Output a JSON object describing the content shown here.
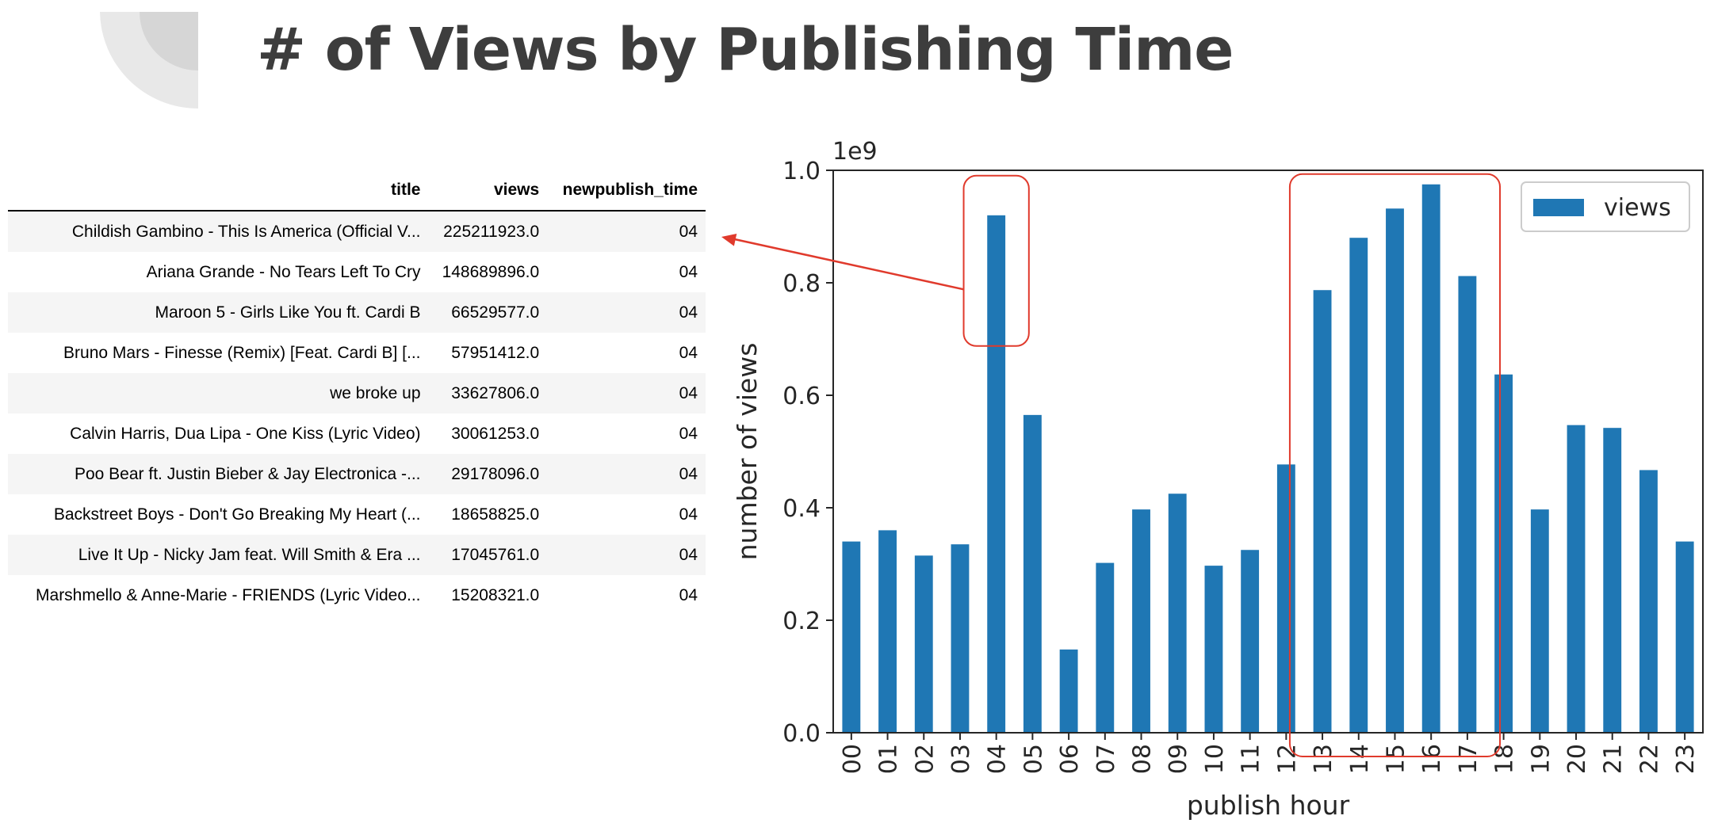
{
  "slide": {
    "title": "# of Views by Publishing Time"
  },
  "table": {
    "columns": [
      "title",
      "views",
      "newpublish_time"
    ],
    "rows": [
      [
        "Childish Gambino - This Is America (Official V...",
        "225211923.0",
        "04"
      ],
      [
        "Ariana Grande - No Tears Left To Cry",
        "148689896.0",
        "04"
      ],
      [
        "Maroon 5 - Girls Like You ft. Cardi B",
        "66529577.0",
        "04"
      ],
      [
        "Bruno Mars - Finesse (Remix) [Feat. Cardi B] [...",
        "57951412.0",
        "04"
      ],
      [
        "we broke up",
        "33627806.0",
        "04"
      ],
      [
        "Calvin Harris, Dua Lipa - One Kiss (Lyric Video)",
        "30061253.0",
        "04"
      ],
      [
        "Poo Bear ft. Justin Bieber & Jay Electronica -...",
        "29178096.0",
        "04"
      ],
      [
        "Backstreet Boys - Don't Go Breaking My Heart (...",
        "18658825.0",
        "04"
      ],
      [
        "Live It Up - Nicky Jam feat. Will Smith & Era ...",
        "17045761.0",
        "04"
      ],
      [
        "Marshmello & Anne-Marie - FRIENDS (Lyric Video...",
        "15208321.0",
        "04"
      ]
    ]
  },
  "chart_data": {
    "type": "bar",
    "categories": [
      "00",
      "01",
      "02",
      "03",
      "04",
      "05",
      "06",
      "07",
      "08",
      "09",
      "10",
      "11",
      "12",
      "13",
      "14",
      "15",
      "16",
      "17",
      "18",
      "19",
      "20",
      "21",
      "22",
      "23"
    ],
    "series": [
      {
        "name": "views",
        "color": "#1f77b4",
        "values": [
          0.34,
          0.36,
          0.315,
          0.335,
          0.92,
          0.565,
          0.148,
          0.302,
          0.397,
          0.425,
          0.297,
          0.325,
          0.477,
          0.787,
          0.88,
          0.932,
          0.975,
          0.812,
          0.637,
          0.397,
          0.547,
          0.542,
          0.467,
          0.34
        ]
      }
    ],
    "xlabel": "publish hour",
    "ylabel": "number of views",
    "y_multiplier_label": "1e9",
    "ylim": [
      0,
      1.0
    ],
    "yticks": [
      "0.0",
      "0.2",
      "0.4",
      "0.6",
      "0.8",
      "1.0"
    ],
    "legend": "top-right",
    "grid": false,
    "highlights": [
      {
        "categories": [
          "04"
        ],
        "color": "#e03a2c"
      },
      {
        "categories": [
          "13",
          "14",
          "15",
          "16",
          "17"
        ],
        "color": "#e03a2c"
      }
    ],
    "annotation_arrow": {
      "from_highlight": 0,
      "to": "table-first-row",
      "color": "#e03a2c"
    }
  }
}
